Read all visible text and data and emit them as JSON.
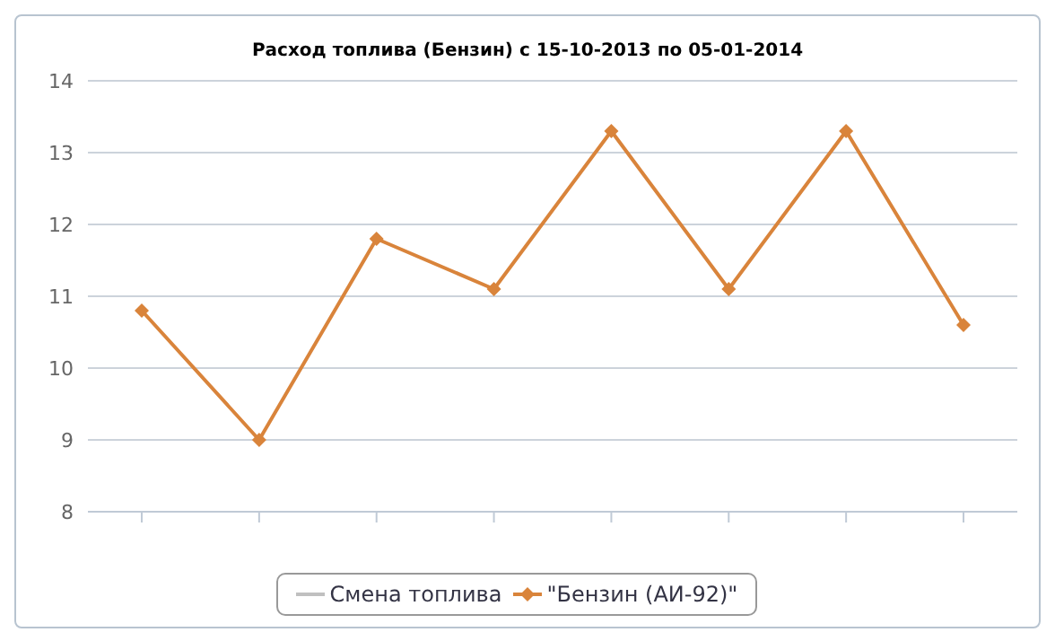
{
  "chart_data": {
    "type": "line",
    "title": "Расход топлива (Бензин) с 15-10-2013 по 05-01-2014",
    "categories": [
      null,
      null,
      null,
      null,
      null,
      null,
      null,
      null
    ],
    "series": [
      {
        "name": "Смена топлива",
        "color": "#c0c0c0",
        "values": [
          null,
          null,
          null,
          null,
          null,
          null,
          null,
          null
        ],
        "marker": "none"
      },
      {
        "name": "\"Бензин (АИ-92)\"",
        "color": "#d9843b",
        "values": [
          10.8,
          9.0,
          11.8,
          11.1,
          13.3,
          11.1,
          13.3,
          10.6
        ],
        "marker": "diamond"
      }
    ],
    "ylim": [
      8,
      14
    ],
    "yticks": [
      8,
      9,
      10,
      11,
      12,
      13,
      14
    ],
    "grid": "y",
    "legend": "bottom",
    "tick_labels": "y"
  }
}
